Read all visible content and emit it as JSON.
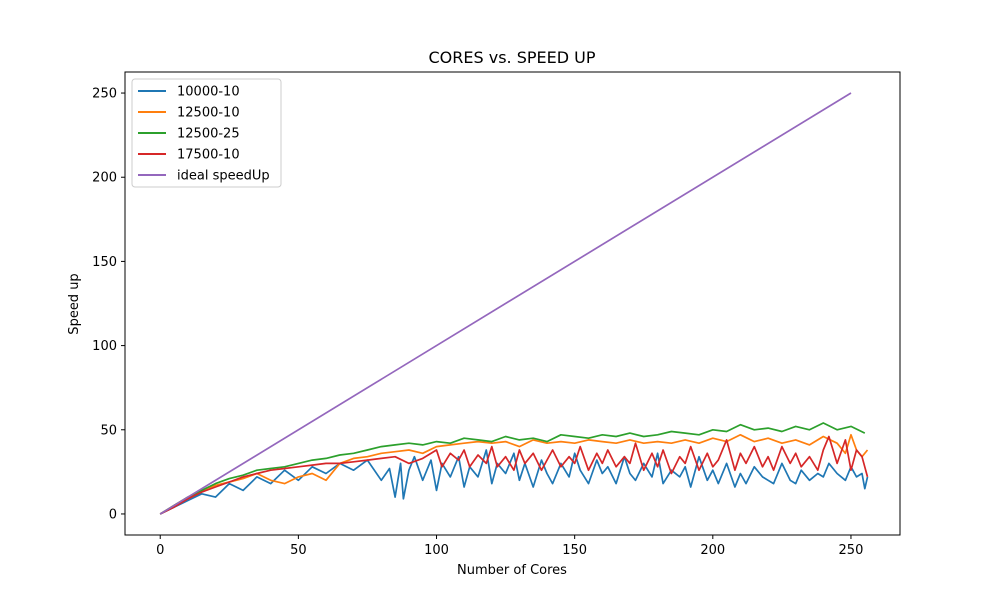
{
  "chart_data": {
    "type": "line",
    "title": "CORES vs. SPEED UP",
    "xlabel": "Number of Cores",
    "ylabel": "Speed up",
    "xlim": [
      -12.75,
      267.75
    ],
    "ylim": [
      -12.5,
      262.5
    ],
    "xticks": [
      0,
      50,
      100,
      150,
      200,
      250
    ],
    "yticks": [
      0,
      50,
      100,
      150,
      200,
      250
    ],
    "grid": false,
    "legend_position": "top-left",
    "series": [
      {
        "name": "10000-10",
        "color": "#1f77b4",
        "x": [
          0,
          5,
          10,
          15,
          20,
          25,
          30,
          35,
          40,
          45,
          50,
          55,
          60,
          65,
          70,
          75,
          80,
          83,
          85,
          87,
          88,
          90,
          92,
          95,
          98,
          100,
          102,
          105,
          108,
          110,
          112,
          115,
          118,
          120,
          122,
          125,
          128,
          130,
          132,
          135,
          138,
          140,
          142,
          145,
          148,
          150,
          152,
          155,
          158,
          160,
          162,
          165,
          168,
          170,
          172,
          175,
          178,
          180,
          182,
          185,
          188,
          190,
          192,
          195,
          198,
          200,
          202,
          205,
          208,
          210,
          212,
          215,
          218,
          220,
          222,
          225,
          228,
          230,
          232,
          235,
          238,
          240,
          242,
          245,
          248,
          250,
          252,
          254,
          255,
          256
        ],
        "y": [
          0,
          4,
          8,
          12,
          10,
          18,
          14,
          22,
          18,
          26,
          20,
          28,
          24,
          30,
          26,
          32,
          20,
          27,
          10,
          30,
          9,
          26,
          34,
          20,
          32,
          14,
          30,
          22,
          34,
          16,
          28,
          22,
          38,
          18,
          30,
          24,
          36,
          20,
          30,
          16,
          32,
          24,
          18,
          30,
          22,
          36,
          26,
          18,
          32,
          24,
          28,
          18,
          34,
          24,
          20,
          30,
          22,
          36,
          18,
          26,
          22,
          28,
          16,
          34,
          20,
          26,
          18,
          30,
          16,
          24,
          18,
          28,
          22,
          20,
          18,
          30,
          20,
          18,
          26,
          20,
          24,
          22,
          30,
          24,
          20,
          28,
          22,
          24,
          15,
          22
        ]
      },
      {
        "name": "12500-10",
        "color": "#ff7f0e",
        "x": [
          0,
          5,
          10,
          15,
          20,
          25,
          30,
          35,
          40,
          45,
          50,
          55,
          60,
          65,
          70,
          75,
          80,
          85,
          90,
          95,
          100,
          105,
          110,
          115,
          120,
          125,
          130,
          135,
          140,
          145,
          150,
          155,
          160,
          165,
          170,
          175,
          180,
          185,
          190,
          195,
          200,
          205,
          210,
          215,
          220,
          225,
          230,
          235,
          240,
          245,
          248,
          250,
          252,
          254,
          256
        ],
        "y": [
          0,
          5,
          10,
          14,
          17,
          19,
          21,
          24,
          20,
          18,
          22,
          24,
          20,
          30,
          33,
          34,
          36,
          37,
          38,
          36,
          40,
          41,
          42,
          43,
          42,
          43,
          40,
          44,
          42,
          43,
          42,
          44,
          43,
          42,
          44,
          42,
          43,
          42,
          44,
          42,
          45,
          43,
          47,
          43,
          45,
          42,
          44,
          41,
          46,
          42,
          36,
          47,
          38,
          34,
          38
        ]
      },
      {
        "name": "12500-25",
        "color": "#2ca02c",
        "x": [
          0,
          5,
          10,
          15,
          20,
          25,
          30,
          35,
          40,
          45,
          50,
          55,
          60,
          65,
          70,
          75,
          80,
          85,
          90,
          95,
          100,
          105,
          110,
          115,
          120,
          125,
          130,
          135,
          140,
          145,
          150,
          155,
          160,
          165,
          170,
          175,
          180,
          185,
          190,
          195,
          200,
          205,
          210,
          215,
          220,
          225,
          230,
          235,
          240,
          245,
          250,
          255
        ],
        "y": [
          0,
          5,
          10,
          14,
          18,
          21,
          23,
          26,
          27,
          28,
          30,
          32,
          33,
          35,
          36,
          38,
          40,
          41,
          42,
          41,
          43,
          42,
          45,
          44,
          43,
          46,
          44,
          45,
          43,
          47,
          46,
          45,
          47,
          46,
          48,
          46,
          47,
          49,
          48,
          47,
          50,
          49,
          53,
          50,
          51,
          49,
          52,
          50,
          54,
          50,
          52,
          48
        ]
      },
      {
        "name": "17500-10",
        "color": "#d62728",
        "x": [
          0,
          5,
          10,
          15,
          20,
          25,
          30,
          35,
          40,
          45,
          50,
          55,
          60,
          65,
          70,
          75,
          80,
          85,
          90,
          95,
          100,
          102,
          105,
          108,
          110,
          112,
          115,
          118,
          120,
          122,
          125,
          128,
          130,
          132,
          135,
          138,
          140,
          142,
          145,
          148,
          150,
          152,
          155,
          158,
          160,
          162,
          165,
          168,
          170,
          172,
          175,
          178,
          180,
          182,
          185,
          188,
          190,
          192,
          195,
          198,
          200,
          202,
          205,
          208,
          210,
          212,
          215,
          218,
          220,
          222,
          225,
          228,
          230,
          232,
          235,
          238,
          240,
          242,
          245,
          248,
          250,
          252,
          254,
          256
        ],
        "y": [
          0,
          4,
          9,
          13,
          16,
          19,
          22,
          24,
          26,
          27,
          28,
          29,
          30,
          30,
          31,
          32,
          33,
          34,
          30,
          33,
          38,
          28,
          36,
          32,
          38,
          28,
          35,
          30,
          40,
          28,
          34,
          26,
          38,
          30,
          36,
          26,
          32,
          38,
          28,
          34,
          30,
          40,
          26,
          36,
          30,
          38,
          28,
          34,
          30,
          42,
          26,
          36,
          28,
          38,
          24,
          34,
          30,
          40,
          26,
          36,
          28,
          32,
          44,
          26,
          36,
          30,
          40,
          28,
          34,
          26,
          40,
          30,
          36,
          28,
          34,
          26,
          38,
          46,
          30,
          44,
          26,
          38,
          34,
          22
        ]
      },
      {
        "name": "ideal speedUp",
        "color": "#9467bd",
        "x": [
          0,
          250
        ],
        "y": [
          0,
          250
        ]
      }
    ]
  }
}
